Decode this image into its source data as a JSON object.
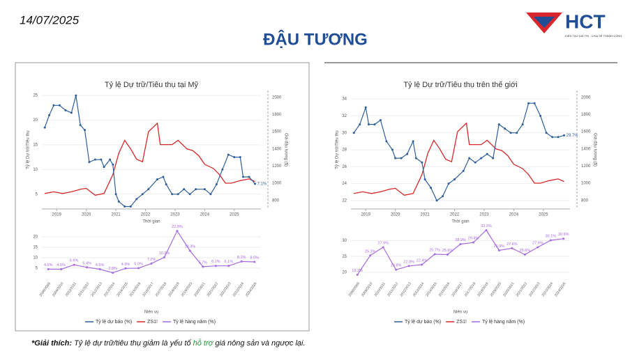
{
  "date": "14/07/2025",
  "title": "ĐẬU TƯƠNG",
  "logo": {
    "text": "HCT",
    "slogan": "KIẾN TẠO GIÁ TRỊ - CHIA SẺ THÀNH CÔNG"
  },
  "note": {
    "lead": "*Giải thích:",
    "text1": "Tỷ lệ dự trữ/tiêu thụ giảm là yếu tố ",
    "highlight": "hỗ trợ",
    "text2": " giá nông sản và ngược lại."
  },
  "chart_data": [
    {
      "type": "line",
      "title": "Tỷ lệ Dự trữ/Tiêu thụ tại Mỹ",
      "xlabel": "Thời gian",
      "ylabel": "Tỷ lệ Dự trữ/Tiêu thụ",
      "y2label": "Giá đậu tương ($)",
      "xlim": [
        2018.5,
        2025.9
      ],
      "xticks": [
        2019,
        2020,
        2021,
        2022,
        2023,
        2024,
        2025
      ],
      "ylim": [
        2,
        26
      ],
      "yticks": [
        5,
        10,
        15,
        20,
        25
      ],
      "y2lim": [
        700,
        2080
      ],
      "y2ticks": [
        800,
        1000,
        1200,
        1400,
        1600,
        1800,
        2000
      ],
      "series": [
        {
          "name": "Tỷ lệ dự báo (%)",
          "color": "#2f5f98",
          "annotation": "7.1%",
          "x": [
            2018.6,
            2018.75,
            2018.9,
            2019.1,
            2019.3,
            2019.5,
            2019.65,
            2019.8,
            2019.95,
            2020.1,
            2020.3,
            2020.5,
            2020.6,
            2020.8,
            2020.9,
            2021.0,
            2021.1,
            2021.3,
            2021.5,
            2021.7,
            2021.9,
            2022.1,
            2022.4,
            2022.6,
            2022.7,
            2022.9,
            2023.1,
            2023.3,
            2023.5,
            2023.7,
            2024.0,
            2024.2,
            2024.4,
            2024.6,
            2024.8,
            2025.0,
            2025.2,
            2025.3,
            2025.5,
            2025.7
          ],
          "values": [
            18.5,
            21,
            23,
            23,
            22,
            21.5,
            25,
            19,
            18,
            11.5,
            12,
            12,
            10.5,
            12,
            11,
            5,
            3.5,
            2.5,
            2.5,
            4,
            5,
            6,
            8,
            8.5,
            7,
            5,
            5,
            6,
            5,
            6,
            6,
            5,
            7,
            10,
            13,
            12.5,
            12.5,
            8.5,
            8.5,
            7.1
          ]
        },
        {
          "name": "ZS1!",
          "color": "#d62728",
          "axis": "y2",
          "x": [
            2018.6,
            2018.9,
            2019.2,
            2019.5,
            2019.8,
            2020.0,
            2020.3,
            2020.6,
            2020.9,
            2021.1,
            2021.3,
            2021.5,
            2021.7,
            2021.9,
            2022.1,
            2022.4,
            2022.5,
            2022.7,
            2022.9,
            2023.1,
            2023.4,
            2023.6,
            2023.8,
            2024.0,
            2024.3,
            2024.5,
            2024.7,
            2024.9,
            2025.2,
            2025.5,
            2025.7
          ],
          "values": [
            880,
            900,
            880,
            900,
            930,
            940,
            860,
            880,
            1100,
            1350,
            1500,
            1400,
            1280,
            1250,
            1600,
            1700,
            1450,
            1450,
            1450,
            1500,
            1400,
            1380,
            1320,
            1220,
            1170,
            1100,
            1000,
            1000,
            1030,
            1050,
            1020
          ]
        }
      ]
    },
    {
      "type": "line",
      "xlabel": "Niên vụ",
      "ylim": [
        0,
        25
      ],
      "yticks": [
        5,
        10,
        15,
        20
      ],
      "categories": [
        "2008/2009",
        "2009/2010",
        "2010/2011",
        "2011/2012",
        "2012/2013",
        "2013/2014",
        "2014/2015",
        "2015/2016",
        "2016/2017",
        "2017/2018",
        "2018/2019",
        "2019/2020",
        "2020/2021",
        "2021/2022",
        "2022/2023",
        "2023/2024",
        "2024/2025"
      ],
      "series": [
        {
          "name": "Tỷ lệ hàng năm (%)",
          "color": "#a66be0",
          "values": [
            4.5,
            4.5,
            6.6,
            5.4,
            4.5,
            2.8,
            4.9,
            5.0,
            7.2,
            10.2,
            22.8,
            13.3,
            5.7,
            6.1,
            6.1,
            8.2,
            8.0
          ],
          "value_labels": [
            "4.5%",
            "4.5%",
            "6.6%",
            "5.4%",
            "4.5%",
            "2.8%",
            "4.9%",
            "5.0%",
            "7.2%",
            "10.2%",
            "22.8%",
            "13.3%",
            "5.7%",
            "6.1%",
            "6.1%",
            "8.2%",
            "8.0%"
          ]
        }
      ]
    },
    {
      "type": "line",
      "title": "Tỷ lệ Dự trữ/Tiêu thụ trên thế giới",
      "xlabel": "Thời gian",
      "ylabel": "Tỷ lệ Dự trữ/Tiêu thụ",
      "y2label": "Giá đậu tương ($)",
      "xlim": [
        2018.5,
        2025.9
      ],
      "xticks": [
        2019,
        2020,
        2021,
        2022,
        2023,
        2024,
        2025
      ],
      "ylim": [
        21,
        35
      ],
      "yticks": [
        22,
        24,
        26,
        28,
        30,
        32,
        34
      ],
      "y2lim": [
        700,
        2080
      ],
      "y2ticks": [
        800,
        1000,
        1200,
        1400,
        1600,
        1800,
        2000
      ],
      "series": [
        {
          "name": "Tỷ lệ dự báo (%)",
          "color": "#2f5f98",
          "annotation": "29.7%",
          "x": [
            2018.6,
            2018.8,
            2019.0,
            2019.1,
            2019.3,
            2019.5,
            2019.7,
            2019.9,
            2020.0,
            2020.2,
            2020.4,
            2020.6,
            2020.7,
            2020.9,
            2021.0,
            2021.2,
            2021.4,
            2021.6,
            2021.8,
            2022.0,
            2022.3,
            2022.5,
            2022.7,
            2022.9,
            2023.1,
            2023.3,
            2023.5,
            2023.7,
            2023.9,
            2024.1,
            2024.3,
            2024.5,
            2024.7,
            2024.9,
            2025.1,
            2025.3,
            2025.5,
            2025.7
          ],
          "values": [
            30,
            31,
            33,
            31,
            31,
            31.5,
            29,
            28,
            27,
            27,
            27.5,
            29,
            27,
            26.5,
            24.5,
            23.5,
            22,
            22.5,
            24,
            24.5,
            25.5,
            27,
            26.5,
            27,
            27.5,
            27,
            31,
            30.5,
            30,
            30,
            31,
            33.5,
            33.5,
            32,
            30,
            29.5,
            29.5,
            29.7
          ]
        },
        {
          "name": "ZS1!",
          "color": "#d62728",
          "axis": "y2",
          "x": [
            2018.6,
            2018.9,
            2019.2,
            2019.5,
            2019.8,
            2020.0,
            2020.3,
            2020.6,
            2020.9,
            2021.1,
            2021.3,
            2021.5,
            2021.7,
            2021.9,
            2022.1,
            2022.4,
            2022.5,
            2022.7,
            2022.9,
            2023.1,
            2023.4,
            2023.6,
            2023.8,
            2024.0,
            2024.3,
            2024.5,
            2024.7,
            2024.9,
            2025.2,
            2025.5,
            2025.7
          ],
          "values": [
            880,
            900,
            880,
            900,
            930,
            940,
            860,
            880,
            1100,
            1350,
            1500,
            1400,
            1280,
            1250,
            1600,
            1700,
            1450,
            1450,
            1450,
            1500,
            1400,
            1380,
            1320,
            1220,
            1170,
            1100,
            1000,
            1000,
            1030,
            1050,
            1020
          ]
        }
      ]
    },
    {
      "type": "line",
      "xlabel": "Niên vụ",
      "ylim": [
        18,
        34.5
      ],
      "yticks": [
        20,
        25,
        30
      ],
      "categories": [
        "2008/2009",
        "2009/2010",
        "2010/2011",
        "2011/2012",
        "2012/2013",
        "2013/2014",
        "2014/2015",
        "2015/2016",
        "2016/2017",
        "2017/2018",
        "2018/2019",
        "2019/2020",
        "2020/2021",
        "2021/2022",
        "2022/2023",
        "2023/2024",
        "2024/2025"
      ],
      "series": [
        {
          "name": "Tỷ lệ hàng năm (%)",
          "color": "#a66be0",
          "values": [
            19.2,
            25.3,
            27.9,
            20.8,
            22.0,
            22.4,
            25.7,
            25.6,
            28.9,
            29.4,
            33.3,
            26.9,
            27.6,
            25.6,
            27.9,
            30.1,
            30.6
          ],
          "value_labels": [
            "19.2%",
            "25.3%",
            "27.9%",
            "20.8%",
            "22.0%",
            "22.4%",
            "25.7%",
            "25.6%",
            "28.9%",
            "29.4%",
            "33.3%",
            "26.9%",
            "27.6%",
            "25.6%",
            "27.9%",
            "30.1%",
            "30.6%"
          ]
        }
      ]
    }
  ]
}
